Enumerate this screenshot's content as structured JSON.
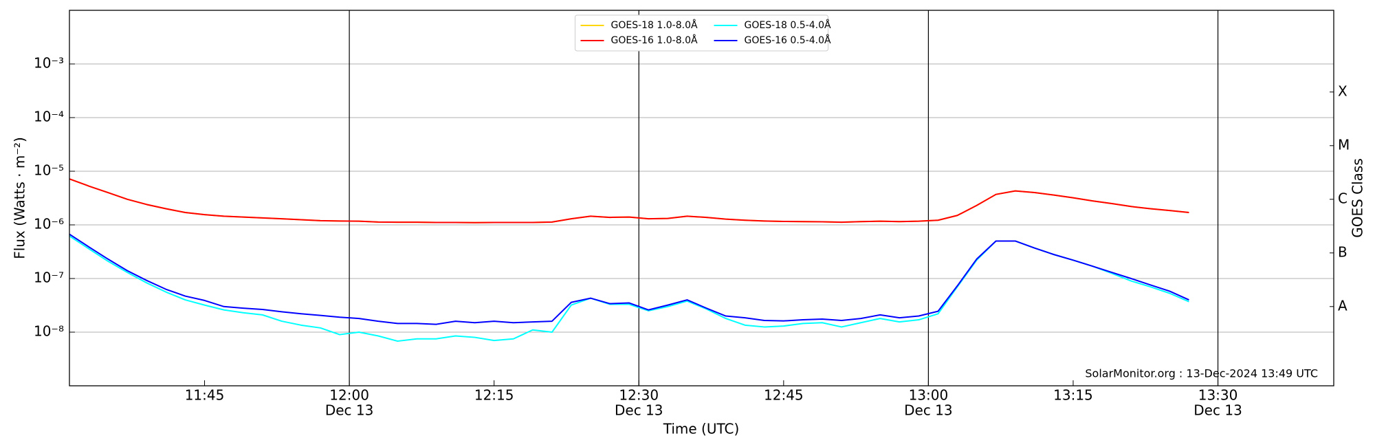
{
  "chart_data": {
    "type": "line",
    "ylabel": "Flux (Watts · m⁻²)",
    "xlabel": "Time (UTC)",
    "y2label": "GOES Class",
    "annotation": "SolarMonitor.org : 13-Dec-2024 13:49 UTC",
    "log_y": true,
    "grid": true,
    "legend": "upper center",
    "xlim": [
      "11:31",
      "13:42"
    ],
    "xticks": [
      "11:45",
      {
        "value": "12:00",
        "label": "12:00",
        "date": "Dec 13"
      },
      "12:15",
      {
        "value": "12:30",
        "label": "12:30",
        "date": "Dec 13"
      },
      "12:45",
      {
        "value": "13:00",
        "label": "13:00",
        "date": "Dec 13"
      },
      "13:15",
      {
        "value": "13:30",
        "label": "13:30",
        "date": "Dec 13"
      }
    ],
    "ylim": [
      1e-09,
      0.01
    ],
    "yticks": [
      {
        "value": 1e-08,
        "label": "10⁻⁸"
      },
      {
        "value": 1e-07,
        "label": "10⁻⁷"
      },
      {
        "value": 1e-06,
        "label": "10⁻⁶"
      },
      {
        "value": 1e-05,
        "label": "10⁻⁵"
      },
      {
        "value": 0.0001,
        "label": "10⁻⁴"
      },
      {
        "value": 0.001,
        "label": "10⁻³"
      }
    ],
    "y2lim": [
      1e-09,
      0.01
    ],
    "y2ticks": [
      {
        "value": 3e-08,
        "label": "A"
      },
      {
        "value": 3e-07,
        "label": "B"
      },
      {
        "value": 3e-06,
        "label": "C"
      },
      {
        "value": 3e-05,
        "label": "M"
      },
      {
        "value": 0.0003,
        "label": "X"
      }
    ],
    "x": [
      "11:31",
      "11:33",
      "11:35",
      "11:37",
      "11:39",
      "11:41",
      "11:43",
      "11:45",
      "11:47",
      "11:49",
      "11:51",
      "11:53",
      "11:55",
      "11:57",
      "11:59",
      "12:01",
      "12:03",
      "12:05",
      "12:07",
      "12:09",
      "12:11",
      "12:13",
      "12:15",
      "12:17",
      "12:19",
      "12:21",
      "12:23",
      "12:25",
      "12:27",
      "12:29",
      "12:31",
      "12:33",
      "12:35",
      "12:37",
      "12:39",
      "12:41",
      "12:43",
      "12:45",
      "12:47",
      "12:49",
      "12:51",
      "12:53",
      "12:55",
      "12:57",
      "12:59",
      "13:01",
      "13:03",
      "13:05",
      "13:07",
      "13:09",
      "13:11",
      "13:13",
      "13:15",
      "13:17",
      "13:19",
      "13:21",
      "13:23",
      "13:25",
      "13:27"
    ],
    "series": [
      {
        "name": "GOES-18 1.0-8.0Å",
        "color": "#ffd700",
        "values": [
          7.2e-06,
          5.3e-06,
          4e-06,
          3e-06,
          2.4e-06,
          2e-06,
          1.7e-06,
          1.55e-06,
          1.45e-06,
          1.4e-06,
          1.35e-06,
          1.3e-06,
          1.25e-06,
          1.2e-06,
          1.18e-06,
          1.17e-06,
          1.13e-06,
          1.12e-06,
          1.12e-06,
          1.11e-06,
          1.11e-06,
          1.1e-06,
          1.11e-06,
          1.11e-06,
          1.11e-06,
          1.13e-06,
          1.3e-06,
          1.45e-06,
          1.38e-06,
          1.4e-06,
          1.3e-06,
          1.32e-06,
          1.45e-06,
          1.38e-06,
          1.28e-06,
          1.22e-06,
          1.18e-06,
          1.16e-06,
          1.15e-06,
          1.14e-06,
          1.12e-06,
          1.15e-06,
          1.17e-06,
          1.15e-06,
          1.17e-06,
          1.22e-06,
          1.5e-06,
          2.3e-06,
          3.7e-06,
          4.3e-06,
          4e-06,
          3.6e-06,
          3.2e-06,
          2.8e-06,
          2.5e-06,
          2.2e-06,
          2e-06,
          1.85e-06,
          1.7e-06
        ]
      },
      {
        "name": "GOES-16 1.0-8.0Å",
        "color": "#ff0000",
        "values": [
          7.2e-06,
          5.3e-06,
          4e-06,
          3e-06,
          2.4e-06,
          2e-06,
          1.7e-06,
          1.55e-06,
          1.45e-06,
          1.4e-06,
          1.35e-06,
          1.3e-06,
          1.25e-06,
          1.2e-06,
          1.18e-06,
          1.17e-06,
          1.13e-06,
          1.12e-06,
          1.12e-06,
          1.11e-06,
          1.11e-06,
          1.1e-06,
          1.11e-06,
          1.11e-06,
          1.11e-06,
          1.13e-06,
          1.3e-06,
          1.45e-06,
          1.38e-06,
          1.4e-06,
          1.3e-06,
          1.32e-06,
          1.45e-06,
          1.38e-06,
          1.28e-06,
          1.22e-06,
          1.18e-06,
          1.16e-06,
          1.15e-06,
          1.14e-06,
          1.12e-06,
          1.15e-06,
          1.17e-06,
          1.15e-06,
          1.17e-06,
          1.22e-06,
          1.5e-06,
          2.3e-06,
          3.7e-06,
          4.3e-06,
          4e-06,
          3.6e-06,
          3.2e-06,
          2.8e-06,
          2.5e-06,
          2.2e-06,
          2e-06,
          1.85e-06,
          1.7e-06
        ]
      },
      {
        "name": "GOES-18 0.5-4.0Å",
        "color": "#00ffff",
        "values": [
          6.2e-07,
          3.6e-07,
          2.1e-07,
          1.3e-07,
          8.3e-08,
          5.6e-08,
          4e-08,
          3.2e-08,
          2.6e-08,
          2.3e-08,
          2.1e-08,
          1.6e-08,
          1.35e-08,
          1.2e-08,
          9e-09,
          1e-08,
          8.5e-09,
          6.8e-09,
          7.5e-09,
          7.5e-09,
          8.5e-09,
          8e-09,
          7e-09,
          7.5e-09,
          1.1e-08,
          1e-08,
          3.2e-08,
          4.3e-08,
          3.3e-08,
          3.3e-08,
          2.5e-08,
          3e-08,
          3.8e-08,
          2.7e-08,
          1.8e-08,
          1.35e-08,
          1.25e-08,
          1.3e-08,
          1.45e-08,
          1.5e-08,
          1.25e-08,
          1.5e-08,
          1.8e-08,
          1.55e-08,
          1.7e-08,
          2.2e-08,
          7e-08,
          2.2e-07,
          5e-07,
          5e-07,
          3.7e-07,
          2.8e-07,
          2.2e-07,
          1.7e-07,
          1.25e-07,
          9e-08,
          7e-08,
          5.3e-08,
          3.7e-08
        ]
      },
      {
        "name": "GOES-16 0.5-4.0Å",
        "color": "#0000ff",
        "values": [
          6.7e-07,
          3.9e-07,
          2.3e-07,
          1.4e-07,
          9.2e-08,
          6.3e-08,
          4.7e-08,
          3.9e-08,
          3e-08,
          2.8e-08,
          2.65e-08,
          2.4e-08,
          2.2e-08,
          2.05e-08,
          1.9e-08,
          1.8e-08,
          1.6e-08,
          1.45e-08,
          1.45e-08,
          1.4e-08,
          1.6e-08,
          1.5e-08,
          1.6e-08,
          1.5e-08,
          1.55e-08,
          1.6e-08,
          3.6e-08,
          4.3e-08,
          3.4e-08,
          3.5e-08,
          2.6e-08,
          3.2e-08,
          4e-08,
          2.8e-08,
          2e-08,
          1.85e-08,
          1.65e-08,
          1.62e-08,
          1.7e-08,
          1.75e-08,
          1.65e-08,
          1.8e-08,
          2.1e-08,
          1.85e-08,
          2e-08,
          2.45e-08,
          7.3e-08,
          2.3e-07,
          5e-07,
          5e-07,
          3.7e-07,
          2.8e-07,
          2.2e-07,
          1.7e-07,
          1.3e-07,
          1e-07,
          7.6e-08,
          5.8e-08,
          4e-08
        ]
      }
    ]
  }
}
